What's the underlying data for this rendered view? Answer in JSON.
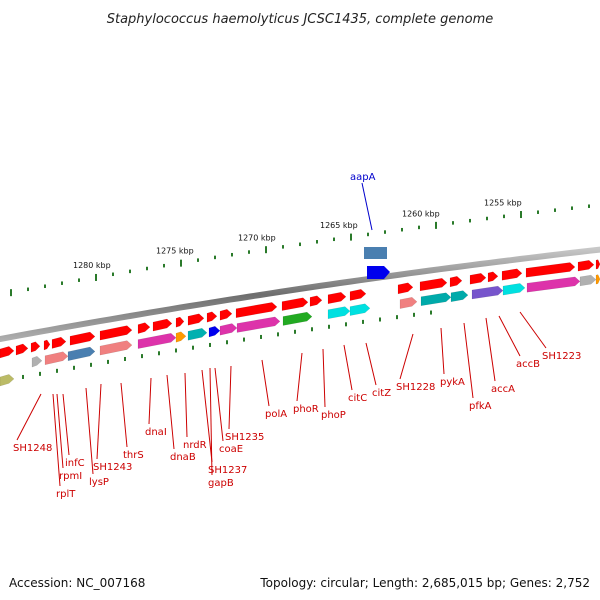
{
  "title": "Staphylococcus haemolyticus JCSC1435, complete genome",
  "accession": "Accession: NC_007168",
  "topology": "Topology: circular; Length: 2,685,015 bp; Genes: 2,752",
  "ticks": [
    "1280 kbp",
    "1275 kbp",
    "1270 kbp",
    "1265 kbp",
    "1260 kbp",
    "1255 kbp"
  ],
  "colors": {
    "red": "#ff0000",
    "backbone": "#808080",
    "tick": "#2a7a2a",
    "highlight_label": "#0000cc",
    "gene_label": "#cc0000"
  },
  "highlighted_gene": "aapA",
  "gene_labels": [
    "SH1248",
    "rplT",
    "rpmI",
    "infC",
    "lysP",
    "SH1243",
    "thrS",
    "dnaI",
    "dnaB",
    "nrdR",
    "SH1237",
    "gapB",
    "coaE",
    "SH1235",
    "polA",
    "phoR",
    "phoP",
    "citC",
    "citZ",
    "SH1228",
    "pykA",
    "pfkA",
    "accA",
    "accB",
    "SH1223"
  ]
}
